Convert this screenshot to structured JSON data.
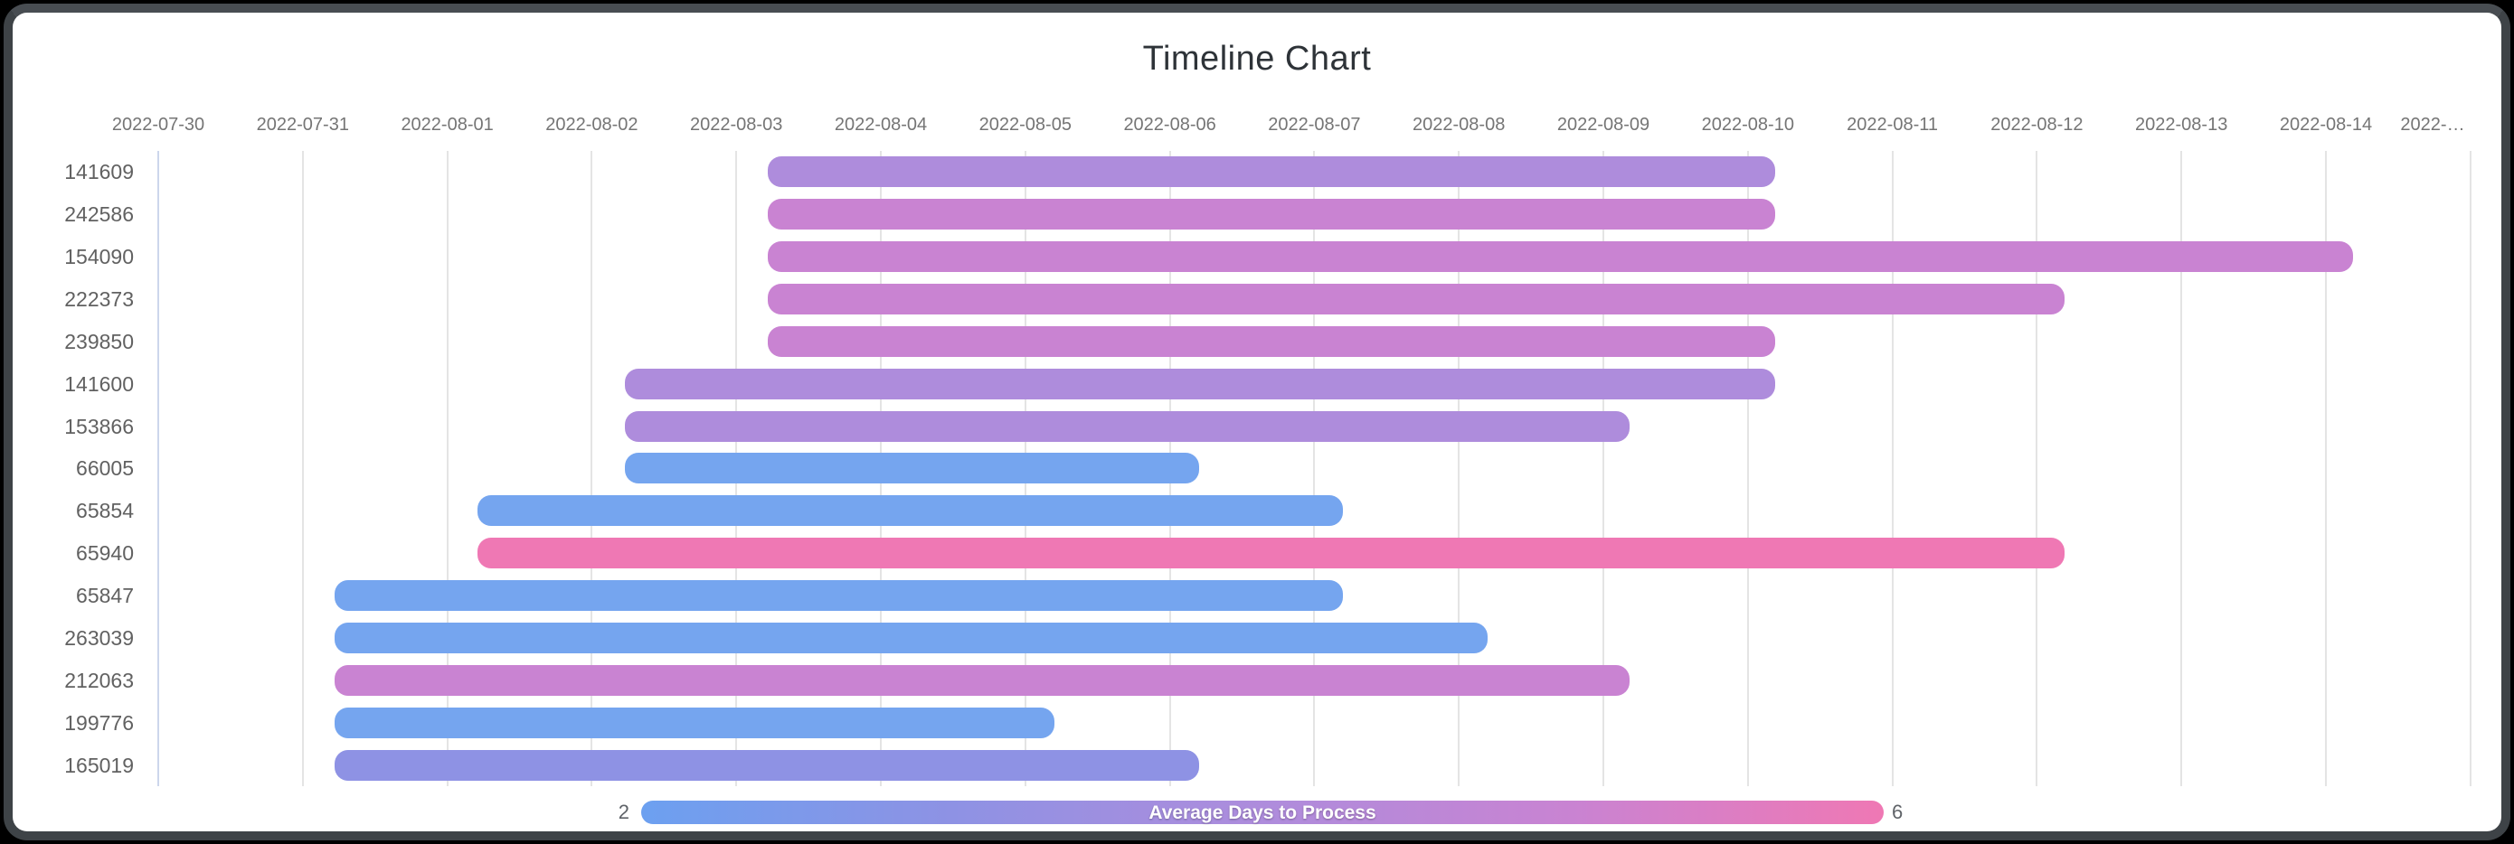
{
  "window": {
    "name": "Timeline Chart window"
  },
  "chart_data": {
    "type": "timeline_gantt",
    "title": "Timeline Chart",
    "x_axis": {
      "tick_labels": [
        "2022-07-30",
        "2022-07-31",
        "2022-08-01",
        "2022-08-02",
        "2022-08-03",
        "2022-08-04",
        "2022-08-05",
        "2022-08-06",
        "2022-08-07",
        "2022-08-08",
        "2022-08-09",
        "2022-08-10",
        "2022-08-11",
        "2022-08-12",
        "2022-08-13",
        "2022-08-14",
        "2022-…"
      ],
      "start_date": "2022-07-30",
      "last_visible_gridline_date": "2022-08-15",
      "grid": true
    },
    "y_axis": {
      "labels": [
        "141609",
        "242586",
        "154090",
        "222373",
        "239850",
        "141600",
        "153866",
        "66005",
        "65854",
        "65940",
        "65847",
        "263039",
        "212063",
        "199776",
        "165019"
      ]
    },
    "tasks": [
      {
        "id": "141609",
        "start_date": "2022-08-03",
        "end_date": "2022-08-10",
        "duration_days": 7,
        "start_day": 4.22,
        "end_day": 11.19,
        "color": "#AE8CDC"
      },
      {
        "id": "242586",
        "start_date": "2022-08-03",
        "end_date": "2022-08-10",
        "duration_days": 7,
        "start_day": 4.22,
        "end_day": 11.19,
        "color": "#C983D2"
      },
      {
        "id": "154090",
        "start_date": "2022-08-03",
        "end_date": "2022-08-14",
        "duration_days": 11,
        "start_day": 4.22,
        "end_day": 15.19,
        "color": "#C983D2"
      },
      {
        "id": "222373",
        "start_date": "2022-08-03",
        "end_date": "2022-08-12",
        "duration_days": 9,
        "start_day": 4.22,
        "end_day": 13.19,
        "color": "#C983D2"
      },
      {
        "id": "239850",
        "start_date": "2022-08-03",
        "end_date": "2022-08-10",
        "duration_days": 7,
        "start_day": 4.22,
        "end_day": 11.19,
        "color": "#C983D2"
      },
      {
        "id": "141600",
        "start_date": "2022-08-02",
        "end_date": "2022-08-10",
        "duration_days": 8,
        "start_day": 3.23,
        "end_day": 11.19,
        "color": "#AE8CDC"
      },
      {
        "id": "153866",
        "start_date": "2022-08-02",
        "end_date": "2022-08-09",
        "duration_days": 7,
        "start_day": 3.23,
        "end_day": 10.18,
        "color": "#AE8CDC"
      },
      {
        "id": "66005",
        "start_date": "2022-08-02",
        "end_date": "2022-08-06",
        "duration_days": 4,
        "start_day": 3.23,
        "end_day": 7.2,
        "color": "#75A5EF"
      },
      {
        "id": "65854",
        "start_date": "2022-08-01",
        "end_date": "2022-08-07",
        "duration_days": 6,
        "start_day": 2.21,
        "end_day": 8.2,
        "color": "#75A5EF"
      },
      {
        "id": "65940",
        "start_date": "2022-08-01",
        "end_date": "2022-08-12",
        "duration_days": 11,
        "start_day": 2.21,
        "end_day": 13.19,
        "color": "#EF78B4"
      },
      {
        "id": "65847",
        "start_date": "2022-07-31",
        "end_date": "2022-08-07",
        "duration_days": 7,
        "start_day": 1.22,
        "end_day": 8.2,
        "color": "#75A5EF"
      },
      {
        "id": "263039",
        "start_date": "2022-07-31",
        "end_date": "2022-08-08",
        "duration_days": 8,
        "start_day": 1.22,
        "end_day": 9.2,
        "color": "#75A5EF"
      },
      {
        "id": "212063",
        "start_date": "2022-07-31",
        "end_date": "2022-08-09",
        "duration_days": 9,
        "start_day": 1.22,
        "end_day": 10.18,
        "color": "#C983D2"
      },
      {
        "id": "199776",
        "start_date": "2022-07-31",
        "end_date": "2022-08-05",
        "duration_days": 5,
        "start_day": 1.22,
        "end_day": 6.2,
        "color": "#75A5EF"
      },
      {
        "id": "165019",
        "start_date": "2022-07-31",
        "end_date": "2022-08-06",
        "duration_days": 6,
        "start_day": 1.22,
        "end_day": 7.2,
        "color": "#8E92E4"
      }
    ],
    "legend": {
      "title": "Average Days to Process",
      "min": 2,
      "max": 6,
      "position": "bottom-center",
      "gradient": [
        "#6CA0F0",
        "#8E92E4",
        "#AE8CDC",
        "#C983D2",
        "#EF78B4"
      ]
    },
    "colors": {
      "blue": "#75A5EF",
      "periwinkle": "#8E92E4",
      "purple": "#AE8CDC",
      "orchid": "#C983D2",
      "pink": "#EF78B4",
      "frame": "#3e4347",
      "axis_line": "#ccd6ec",
      "gridline": "#e4e4e4"
    }
  }
}
